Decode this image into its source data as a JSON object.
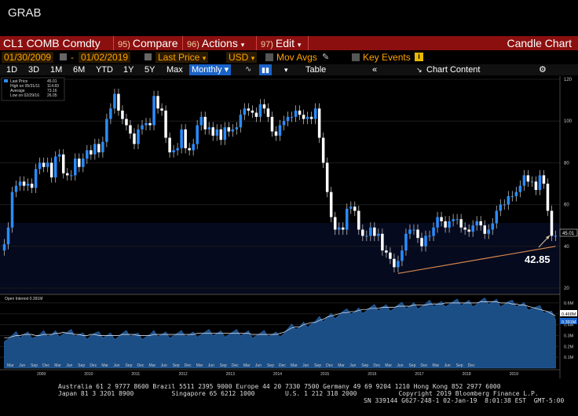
{
  "window": {
    "title": "GRAB"
  },
  "command_bar": {
    "ticker": "CL1 COMB Comdty",
    "compare": {
      "num": "95)",
      "label": "Compare"
    },
    "actions": {
      "num": "96)",
      "label": "Actions"
    },
    "edit": {
      "num": "97)",
      "label": "Edit"
    },
    "chart_type": "Candle Chart"
  },
  "options_bar": {
    "start_date": "01/30/2009",
    "end_date": "01/02/2019",
    "field": "Last Price",
    "currency": "USD",
    "mov_avgs": "Mov Avgs",
    "key_events": "Key Events"
  },
  "period_bar": {
    "periods": [
      "1D",
      "3D",
      "1M",
      "6M",
      "YTD",
      "1Y",
      "5Y",
      "Max"
    ],
    "frequency": "Monthly",
    "table": "Table",
    "chart_content": "Chart Content"
  },
  "legend": {
    "last_price": {
      "label": "Last Price",
      "value": "45.01"
    },
    "high": {
      "label": "High on 05/31/11",
      "value": "114.83"
    },
    "average": {
      "label": "Average",
      "value": "73.16"
    },
    "low": {
      "label": "Low on 02/29/16",
      "value": "26.05"
    },
    "open_interest": "Open Interest 0.391M"
  },
  "annotation": {
    "value": "42.85"
  },
  "current_price_tag": "45.01",
  "oi_tag": "0.468M",
  "oi_tag2": "0.391M",
  "chart_data": {
    "type": "candlestick",
    "title": "CL1 COMB Comdty",
    "ylim": [
      20,
      120
    ],
    "y_ticks": [
      20,
      40,
      60,
      80,
      100,
      120
    ],
    "oi_ticks": [
      "0.6M",
      "0.5M",
      "0.4M",
      "0.3M",
      "0.2M",
      "0.1M"
    ],
    "x_month_labels": [
      "Mar",
      "Jun",
      "Sep",
      "Dec",
      "Mar",
      "Jun",
      "Sep",
      "Dec",
      "Mar",
      "Jun",
      "Sep",
      "Dec",
      "Mar",
      "Jun",
      "Sep",
      "Dec",
      "Mar",
      "Jun",
      "Sep",
      "Dec",
      "Mar",
      "Jun",
      "Sep",
      "Dec",
      "Mar",
      "Jun",
      "Sep",
      "Dec",
      "Mar",
      "Jun",
      "Sep",
      "Dec",
      "Mar",
      "Jun",
      "Sep",
      "Dec",
      "Mar",
      "Jun",
      "Sep",
      "Dec"
    ],
    "x_year_labels": [
      "2009",
      "2010",
      "2011",
      "2012",
      "2013",
      "2014",
      "2015",
      "2016",
      "2017",
      "2018",
      "2019"
    ],
    "closes": [
      41,
      49,
      66,
      69,
      71,
      69,
      70,
      68,
      77,
      80,
      78,
      80,
      73,
      83,
      84,
      75,
      74,
      74,
      82,
      78,
      82,
      86,
      84,
      89,
      85,
      90,
      101,
      106,
      113,
      105,
      101,
      98,
      94,
      89,
      96,
      98,
      99,
      98,
      112,
      106,
      105,
      92,
      85,
      86,
      87,
      96,
      87,
      86,
      89,
      98,
      102,
      96,
      97,
      93,
      96,
      91,
      97,
      95,
      96,
      97,
      103,
      106,
      105,
      104,
      102,
      108,
      106,
      102,
      95,
      93,
      98,
      100,
      102,
      102,
      105,
      103,
      101,
      102,
      101,
      106,
      92,
      80,
      66,
      54,
      48,
      49,
      48,
      58,
      59,
      57,
      48,
      45,
      45,
      49,
      45,
      46,
      38,
      37,
      34,
      30,
      33,
      38,
      46,
      48,
      48,
      44,
      40,
      45,
      45,
      49,
      54,
      52,
      49,
      52,
      53,
      53,
      49,
      48,
      47,
      50,
      52,
      50,
      46,
      48,
      51,
      57,
      60,
      60,
      64,
      64,
      66,
      69,
      74,
      71,
      71,
      67,
      74,
      70,
      57,
      45,
      45
    ],
    "oi_level": [
      0.28,
      0.28,
      0.29,
      0.3,
      0.3,
      0.31,
      0.31,
      0.31,
      0.3,
      0.3,
      0.31,
      0.31,
      0.31,
      0.32,
      0.32,
      0.33,
      0.32,
      0.32,
      0.31,
      0.31,
      0.3,
      0.3,
      0.31,
      0.31,
      0.3,
      0.3,
      0.3,
      0.3,
      0.3,
      0.3,
      0.31,
      0.31,
      0.31,
      0.31,
      0.3,
      0.3,
      0.3,
      0.3,
      0.31,
      0.31,
      0.31,
      0.31,
      0.31,
      0.31,
      0.31,
      0.31,
      0.31,
      0.31,
      0.31,
      0.32,
      0.32,
      0.32,
      0.32,
      0.32,
      0.32,
      0.32,
      0.32,
      0.32,
      0.32,
      0.32,
      0.32,
      0.32,
      0.32,
      0.31,
      0.31,
      0.31,
      0.31,
      0.31,
      0.31,
      0.31,
      0.32,
      0.33,
      0.35,
      0.37,
      0.38,
      0.38,
      0.4,
      0.41,
      0.42,
      0.42,
      0.44,
      0.45,
      0.47,
      0.48,
      0.49,
      0.5,
      0.51,
      0.51,
      0.52,
      0.52,
      0.53,
      0.54,
      0.54,
      0.55,
      0.55,
      0.55,
      0.56,
      0.56,
      0.56,
      0.56,
      0.57,
      0.57,
      0.57,
      0.57,
      0.58,
      0.58,
      0.58,
      0.58,
      0.59,
      0.59,
      0.59,
      0.59,
      0.6,
      0.6,
      0.6,
      0.6,
      0.6,
      0.6,
      0.6,
      0.6,
      0.6,
      0.61,
      0.61,
      0.61,
      0.61,
      0.61,
      0.6,
      0.6,
      0.6,
      0.59,
      0.59,
      0.58,
      0.58,
      0.57,
      0.56,
      0.55,
      0.54,
      0.53,
      0.52,
      0.5,
      0.48
    ]
  },
  "footer": {
    "line1": "Australia 61 2 9777 8600 Brazil 5511 2395 9000 Europe 44 20 7330 7500 Germany 49 69 9204 1210 Hong Kong 852 2977 6000",
    "line2": "Japan 81 3 3201 8900          Singapore 65 6212 1000        U.S. 1 212 318 2000           Copyright 2019 Bloomberg Finance L.P.",
    "line3": "SN 339144 G627-248-1 02-Jan-19  8:01:38 EST  GMT-5:00"
  },
  "colors": {
    "up": "#2a8cff",
    "down": "#ffffff",
    "accent": "#8c0f0f",
    "trend": "#d98a4f"
  }
}
